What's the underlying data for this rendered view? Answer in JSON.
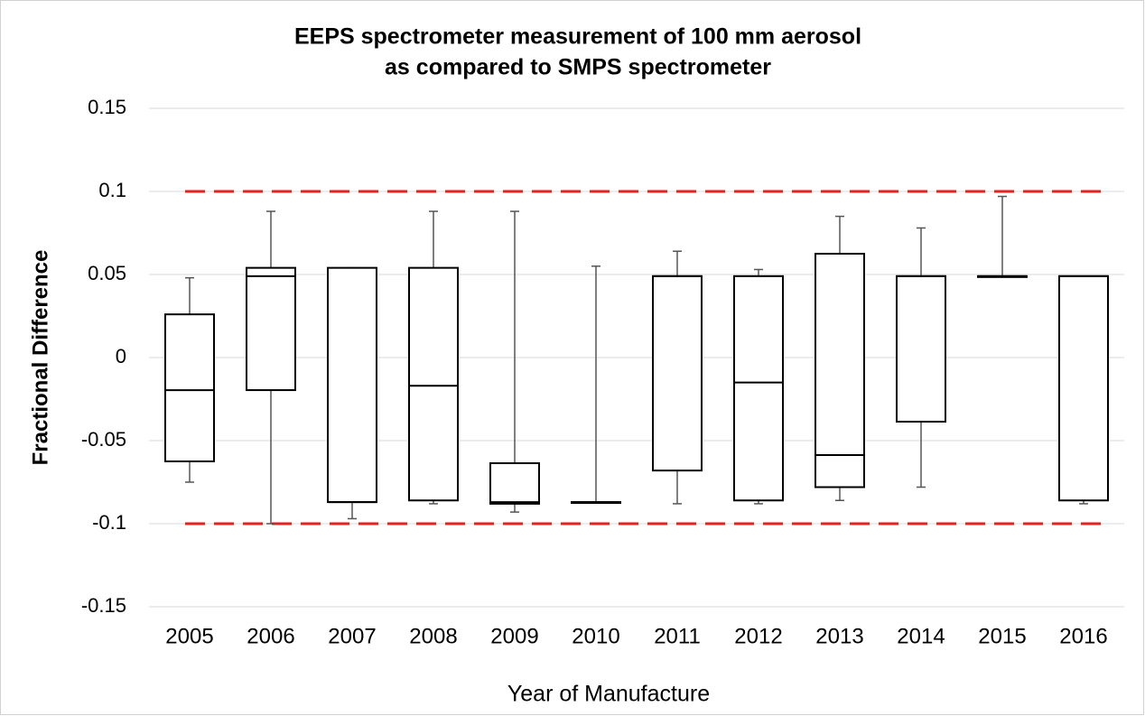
{
  "chart_data": {
    "type": "box",
    "title": [
      "EEPS spectrometer measurement of 100 mm aerosol",
      "as compared to SMPS spectrometer"
    ],
    "x_label": "Year of Manufacture",
    "y_label": "Fractional Difference",
    "categories": [
      "2005",
      "2006",
      "2007",
      "2008",
      "2009",
      "2010",
      "2011",
      "2012",
      "2013",
      "2014",
      "2015",
      "2016"
    ],
    "min": [
      -0.075,
      -0.1,
      -0.097,
      -0.088,
      -0.093,
      -0.087,
      -0.088,
      -0.088,
      -0.086,
      -0.078,
      0.049,
      -0.088
    ],
    "q1": [
      -0.0625,
      -0.0196,
      -0.087,
      -0.086,
      -0.088,
      -0.087,
      -0.068,
      -0.086,
      -0.078,
      -0.0386,
      0.049,
      -0.086
    ],
    "median": [
      -0.0196,
      0.049,
      -0.087,
      -0.017,
      -0.087,
      -0.087,
      0.049,
      -0.015,
      -0.0587,
      0.049,
      0.049,
      0.049
    ],
    "q3": [
      0.026,
      0.054,
      0.054,
      0.054,
      -0.0636,
      -0.087,
      0.049,
      0.049,
      0.0625,
      0.049,
      0.049,
      0.049
    ],
    "max": [
      0.048,
      0.088,
      0.054,
      0.088,
      0.088,
      0.055,
      0.064,
      0.053,
      0.085,
      0.078,
      0.097,
      0.049
    ],
    "box_color": "#000000",
    "ylim": [
      -0.15,
      0.15
    ],
    "yticks": [
      0.15,
      0.1,
      0.05,
      0,
      -0.05,
      -0.1,
      -0.15
    ],
    "grid": true,
    "reference_lines": [
      {
        "value": 0.1,
        "color": "#e8201e"
      },
      {
        "value": -0.1,
        "color": "#e8201e"
      }
    ]
  }
}
